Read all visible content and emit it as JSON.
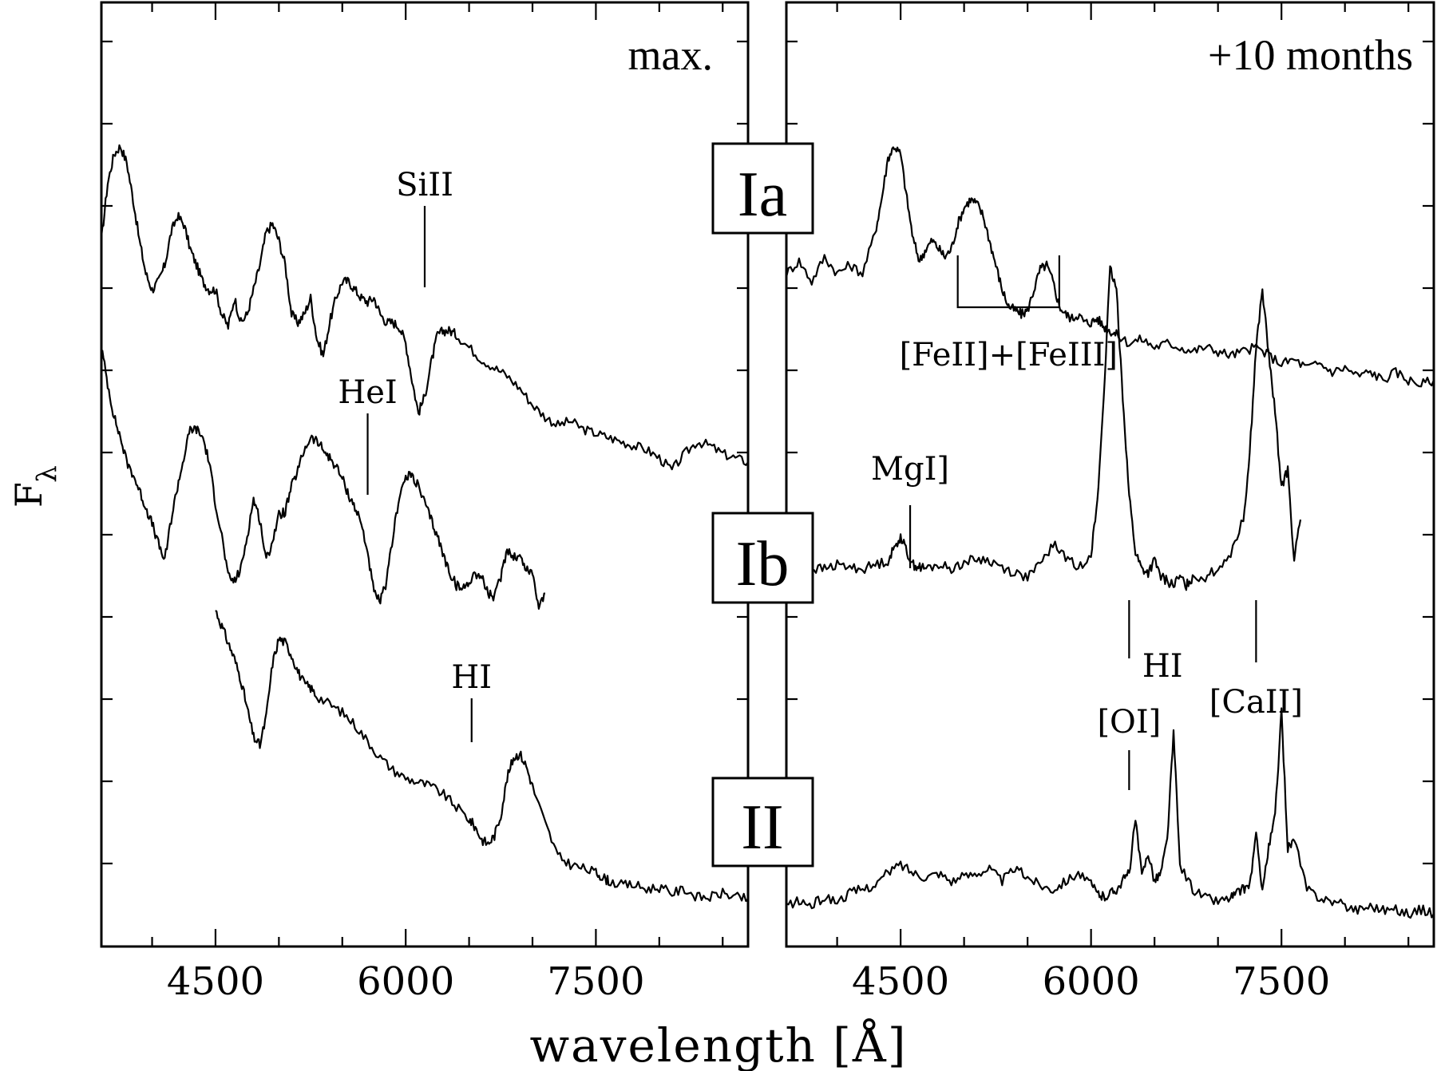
{
  "chart_data": [
    {
      "type": "line",
      "panel_label": "max.",
      "xlabel": "wavelength [Å]",
      "ylabel": "F",
      "ylabel_sub": "λ",
      "xlim": [
        3600,
        8700
      ],
      "xticks": [
        4500,
        6000,
        7500
      ],
      "series": [
        {
          "sn_type": "Ia",
          "x": [
            3600,
            3650,
            3700,
            3750,
            3800,
            3850,
            3900,
            3950,
            4000,
            4050,
            4100,
            4150,
            4200,
            4250,
            4300,
            4350,
            4400,
            4450,
            4500,
            4550,
            4600,
            4650,
            4700,
            4750,
            4800,
            4850,
            4900,
            4950,
            5000,
            5050,
            5100,
            5150,
            5200,
            5250,
            5300,
            5350,
            5400,
            5450,
            5500,
            5550,
            5600,
            5650,
            5700,
            5750,
            5800,
            5850,
            5900,
            5950,
            6000,
            6050,
            6100,
            6150,
            6200,
            6250,
            6300,
            6350,
            6400,
            6500,
            6600,
            6700,
            6800,
            6900,
            7000,
            7100,
            7200,
            7300,
            7400,
            7500,
            7600,
            7700,
            7800,
            7900,
            8000,
            8100,
            8200,
            8300,
            8400,
            8500,
            8600,
            8700
          ],
          "y": [
            8.6,
            9.3,
            9.65,
            9.75,
            9.55,
            9.1,
            8.6,
            8.2,
            8.0,
            8.1,
            8.3,
            8.7,
            8.9,
            8.8,
            8.5,
            8.3,
            8.1,
            8.0,
            8.0,
            7.7,
            7.55,
            7.9,
            7.6,
            7.7,
            8.0,
            8.3,
            8.7,
            8.8,
            8.6,
            8.3,
            7.7,
            7.6,
            7.7,
            7.9,
            7.4,
            7.2,
            7.6,
            7.9,
            8.1,
            8.1,
            8.0,
            7.9,
            7.85,
            7.9,
            7.7,
            7.6,
            7.6,
            7.55,
            7.35,
            6.9,
            6.5,
            6.7,
            7.1,
            7.45,
            7.5,
            7.5,
            7.45,
            7.3,
            7.15,
            7.05,
            6.95,
            6.8,
            6.6,
            6.45,
            6.35,
            6.4,
            6.3,
            6.25,
            6.2,
            6.15,
            6.1,
            6.05,
            5.95,
            5.8,
            6.0,
            6.15,
            6.1,
            6.0,
            5.95,
            5.9
          ]
        },
        {
          "sn_type": "Ib",
          "x": [
            3600,
            3650,
            3700,
            3750,
            3800,
            3850,
            3900,
            3950,
            4000,
            4050,
            4100,
            4150,
            4200,
            4250,
            4300,
            4350,
            4400,
            4450,
            4500,
            4550,
            4600,
            4650,
            4700,
            4750,
            4800,
            4850,
            4900,
            4950,
            5000,
            5050,
            5100,
            5150,
            5200,
            5250,
            5300,
            5350,
            5400,
            5450,
            5500,
            5550,
            5600,
            5650,
            5700,
            5750,
            5800,
            5850,
            5900,
            5950,
            6000,
            6050,
            6100,
            6150,
            6200,
            6250,
            6300,
            6350,
            6400,
            6450,
            6500,
            6550,
            6600,
            6650,
            6700,
            6750,
            6800,
            6850,
            6900,
            6950,
            7000,
            7050,
            7100
          ],
          "y": [
            7.3,
            6.85,
            6.45,
            6.2,
            5.9,
            5.75,
            5.55,
            5.35,
            5.15,
            4.9,
            4.7,
            5.2,
            5.6,
            5.95,
            6.3,
            6.3,
            6.2,
            5.9,
            5.4,
            5.0,
            4.5,
            4.45,
            4.6,
            5.0,
            5.45,
            5.2,
            4.7,
            4.95,
            5.25,
            5.3,
            5.6,
            5.8,
            6.05,
            6.2,
            6.15,
            6.05,
            5.95,
            5.85,
            5.7,
            5.5,
            5.35,
            5.15,
            4.8,
            4.3,
            4.2,
            4.45,
            5.0,
            5.5,
            5.7,
            5.75,
            5.6,
            5.4,
            5.2,
            5.0,
            4.75,
            4.55,
            4.4,
            4.35,
            4.45,
            4.55,
            4.5,
            4.3,
            4.25,
            4.5,
            4.85,
            4.75,
            4.75,
            4.6,
            4.55,
            4.15,
            4.3
          ]
        },
        {
          "sn_type": "II",
          "x": [
            4500,
            4550,
            4600,
            4650,
            4700,
            4750,
            4800,
            4850,
            4900,
            4950,
            5000,
            5050,
            5100,
            5150,
            5200,
            5250,
            5300,
            5400,
            5500,
            5600,
            5700,
            5800,
            5900,
            6000,
            6100,
            6200,
            6300,
            6400,
            6500,
            6550,
            6600,
            6650,
            6700,
            6750,
            6800,
            6850,
            6900,
            6950,
            7000,
            7100,
            7200,
            7300,
            7400,
            7500,
            7550,
            7600,
            7700,
            7800,
            7900,
            8000,
            8100,
            8200,
            8300,
            8400,
            8500,
            8600,
            8700
          ],
          "y": [
            4.1,
            3.9,
            3.7,
            3.5,
            3.25,
            2.9,
            2.55,
            2.45,
            2.8,
            3.45,
            3.75,
            3.7,
            3.55,
            3.35,
            3.2,
            3.15,
            3.05,
            2.95,
            2.85,
            2.7,
            2.5,
            2.3,
            2.15,
            2.05,
            2.0,
            1.95,
            1.85,
            1.7,
            1.55,
            1.45,
            1.3,
            1.25,
            1.35,
            1.6,
            2.05,
            2.3,
            2.35,
            2.2,
            1.95,
            1.5,
            1.1,
            1.0,
            0.95,
            0.9,
            0.85,
            0.8,
            0.75,
            0.75,
            0.7,
            0.72,
            0.65,
            0.7,
            0.6,
            0.6,
            0.65,
            0.6,
            0.58
          ]
        }
      ],
      "annotations": [
        {
          "text": "SiII",
          "x": 6150
        },
        {
          "text": "HeI",
          "x": 5700
        },
        {
          "text": "HI",
          "x": 6520
        }
      ]
    },
    {
      "type": "line",
      "panel_label": "+10 months",
      "xlim": [
        3600,
        8700
      ],
      "xticks": [
        4500,
        6000,
        7500
      ],
      "series": [
        {
          "sn_type": "Ia",
          "x": [
            3600,
            3700,
            3800,
            3900,
            4000,
            4100,
            4200,
            4300,
            4350,
            4400,
            4450,
            4500,
            4550,
            4600,
            4650,
            4700,
            4750,
            4800,
            4850,
            4900,
            4950,
            5000,
            5050,
            5100,
            5150,
            5200,
            5250,
            5300,
            5350,
            5400,
            5450,
            5500,
            5550,
            5600,
            5650,
            5700,
            5750,
            5800,
            5850,
            5900,
            5950,
            6000,
            6050,
            6100,
            6150,
            6200,
            6300,
            6400,
            6500,
            6600,
            6700,
            6800,
            6900,
            7000,
            7100,
            7200,
            7300,
            7400,
            7500,
            7600,
            7700,
            7800,
            7900,
            8000,
            8100,
            8200,
            8300,
            8400,
            8500,
            8600,
            8700
          ],
          "y": [
            8.2,
            8.35,
            8.1,
            8.4,
            8.2,
            8.3,
            8.2,
            8.7,
            9.1,
            9.6,
            9.75,
            9.65,
            9.1,
            8.6,
            8.35,
            8.5,
            8.6,
            8.5,
            8.4,
            8.5,
            8.8,
            9.0,
            9.1,
            9.05,
            8.9,
            8.6,
            8.3,
            8.0,
            7.8,
            7.75,
            7.7,
            7.75,
            8.0,
            8.25,
            8.3,
            8.1,
            7.8,
            7.7,
            7.65,
            7.7,
            7.6,
            7.6,
            7.65,
            7.55,
            7.5,
            7.45,
            7.35,
            7.4,
            7.3,
            7.35,
            7.3,
            7.25,
            7.3,
            7.25,
            7.2,
            7.25,
            7.3,
            7.2,
            7.1,
            7.15,
            7.05,
            7.1,
            7.0,
            7.05,
            6.95,
            7.0,
            6.9,
            7.0,
            6.9,
            6.85,
            6.9
          ]
        },
        {
          "sn_type": "Ib",
          "x": [
            3600,
            3700,
            3800,
            3900,
            4000,
            4100,
            4200,
            4300,
            4400,
            4450,
            4500,
            4550,
            4600,
            4650,
            4700,
            4800,
            4900,
            5000,
            5100,
            5200,
            5300,
            5400,
            5500,
            5600,
            5700,
            5800,
            5900,
            6000,
            6050,
            6100,
            6150,
            6200,
            6250,
            6300,
            6350,
            6400,
            6450,
            6500,
            6550,
            6600,
            6650,
            6700,
            6750,
            6800,
            6900,
            7000,
            7100,
            7200,
            7250,
            7300,
            7350,
            7400,
            7450,
            7500,
            7550,
            7600,
            7650
          ],
          "y": [
            4.55,
            4.55,
            4.6,
            4.6,
            4.65,
            4.62,
            4.6,
            4.65,
            4.7,
            4.85,
            5.0,
            4.8,
            4.65,
            4.62,
            4.6,
            4.65,
            4.6,
            4.68,
            4.72,
            4.7,
            4.62,
            4.55,
            4.5,
            4.65,
            4.9,
            4.75,
            4.6,
            4.8,
            5.4,
            6.7,
            8.25,
            8.0,
            6.7,
            5.5,
            4.8,
            4.6,
            4.55,
            4.7,
            4.5,
            4.45,
            4.4,
            4.5,
            4.4,
            4.5,
            4.5,
            4.6,
            4.8,
            5.2,
            6.0,
            7.3,
            8.0,
            7.2,
            6.5,
            5.6,
            5.8,
            4.7,
            5.2
          ]
        },
        {
          "sn_type": "II",
          "x": [
            3600,
            3700,
            3800,
            3900,
            4000,
            4100,
            4200,
            4300,
            4400,
            4500,
            4600,
            4700,
            4800,
            4900,
            5000,
            5100,
            5200,
            5300,
            5400,
            5500,
            5600,
            5700,
            5800,
            5900,
            6000,
            6050,
            6100,
            6150,
            6200,
            6250,
            6300,
            6350,
            6400,
            6450,
            6500,
            6550,
            6600,
            6650,
            6700,
            6800,
            6900,
            7000,
            7100,
            7150,
            7200,
            7250,
            7300,
            7350,
            7400,
            7450,
            7500,
            7550,
            7600,
            7700,
            7800,
            7900,
            8000,
            8100,
            8200,
            8300,
            8400,
            8500,
            8600,
            8700
          ],
          "y": [
            0.5,
            0.55,
            0.5,
            0.6,
            0.55,
            0.65,
            0.7,
            0.75,
            0.9,
            1.0,
            0.9,
            0.85,
            0.9,
            0.8,
            0.85,
            0.9,
            0.95,
            0.8,
            0.95,
            0.85,
            0.75,
            0.7,
            0.8,
            0.9,
            0.75,
            0.65,
            0.6,
            0.65,
            0.7,
            0.8,
            0.9,
            1.55,
            0.85,
            1.15,
            0.8,
            0.9,
            1.3,
            2.6,
            1.0,
            0.7,
            0.6,
            0.55,
            0.6,
            0.65,
            0.7,
            0.75,
            1.35,
            0.7,
            1.2,
            1.6,
            2.85,
            1.2,
            1.3,
            0.7,
            0.6,
            0.55,
            0.5,
            0.45,
            0.5,
            0.45,
            0.45,
            0.4,
            0.45,
            0.4
          ]
        }
      ],
      "annotations": [
        {
          "text": "[FeII]+[FeIII]",
          "x": [
            4950,
            5750
          ]
        },
        {
          "text": "MgI]",
          "x": 4575
        },
        {
          "text": "[OI]",
          "x": 6300
        },
        {
          "text": "HI",
          "x": 6563
        },
        {
          "text": "[CaII]",
          "x": 7300
        }
      ]
    }
  ],
  "labels": {
    "type_ia": "Ia",
    "type_ib": "Ib",
    "type_ii": "II"
  }
}
